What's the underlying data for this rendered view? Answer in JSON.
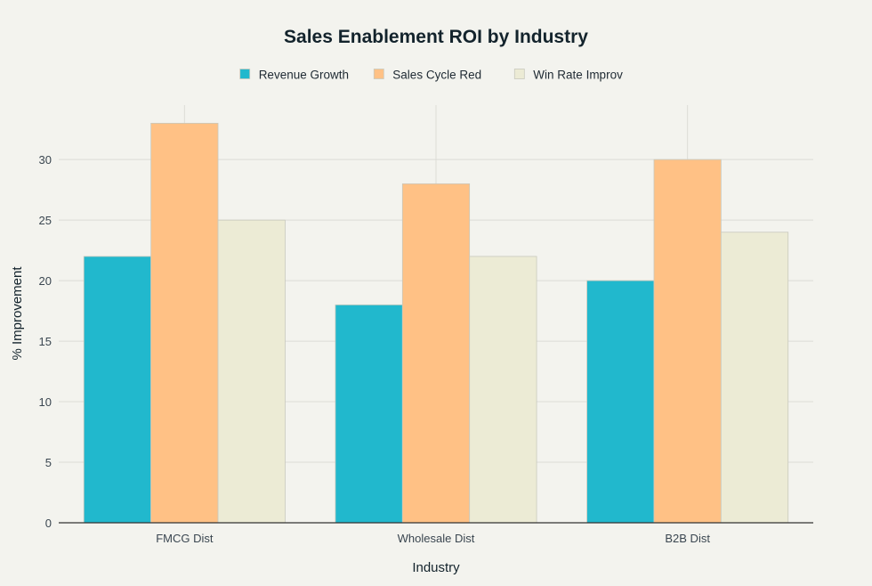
{
  "chart_data": {
    "type": "bar",
    "title": "Sales Enablement ROI by Industry",
    "xlabel": "Industry",
    "ylabel": "% Improvement",
    "categories": [
      "FMCG Dist",
      "Wholesale Dist",
      "B2B Dist"
    ],
    "series": [
      {
        "name": "Revenue Growth",
        "values": [
          22,
          18,
          20
        ],
        "color": "#21b8cd"
      },
      {
        "name": "Sales Cycle Red",
        "values": [
          33,
          28,
          30
        ],
        "color": "#ffc185"
      },
      {
        "name": "Win Rate Improv",
        "values": [
          25,
          22,
          24
        ],
        "color": "#ecebd5"
      }
    ],
    "ylim": [
      0,
      34.5
    ],
    "yticks": [
      0,
      5,
      10,
      15,
      20,
      25,
      30
    ],
    "grid": true,
    "legend_position": "top-center",
    "background_color": "#f3f3ee",
    "grid_color": "#dcdcd6",
    "axis_color": "#333333",
    "bar_stroke_color": "#c9c9bd"
  }
}
